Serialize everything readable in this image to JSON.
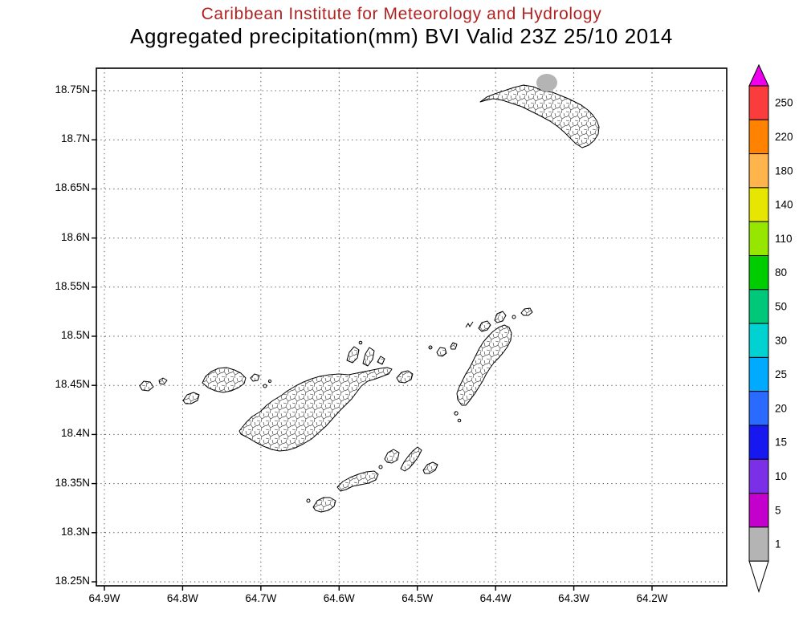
{
  "chart_data": {
    "type": "heatmap",
    "suptitle": "Caribbean Institute for Meteorology and Hydrology",
    "title": "Aggregated precipitation(mm) BVI Valid 23Z 25/10 2014",
    "x_ticks": [
      "64.9W",
      "64.8W",
      "64.7W",
      "64.6W",
      "64.5W",
      "64.4W",
      "64.3W",
      "64.2W"
    ],
    "y_ticks": [
      "18.75N",
      "18.7N",
      "18.65N",
      "18.6N",
      "18.55N",
      "18.5N",
      "18.45N",
      "18.4N",
      "18.35N",
      "18.3N",
      "18.25N"
    ],
    "grid": "dotted",
    "colorbar_units": "mm",
    "colorbar_position": "right",
    "colorbar_cells_top_to_bottom": [
      {
        "label": "250",
        "color": "#fa3c3c"
      },
      {
        "label": "220",
        "color": "#ff8200"
      },
      {
        "label": "180",
        "color": "#ffb44c"
      },
      {
        "label": "140",
        "color": "#e6e600"
      },
      {
        "label": "110",
        "color": "#96e600"
      },
      {
        "label": "80",
        "color": "#00cd00"
      },
      {
        "label": "50",
        "color": "#00c87a"
      },
      {
        "label": "30",
        "color": "#00d2d2"
      },
      {
        "label": "25",
        "color": "#00aaff"
      },
      {
        "label": "20",
        "color": "#2a6aff"
      },
      {
        "label": "15",
        "color": "#1717f0"
      },
      {
        "label": "10",
        "color": "#7b2fe6"
      },
      {
        "label": "5",
        "color": "#c400cd"
      },
      {
        "label": "1",
        "color": "#b4b4b4"
      }
    ],
    "colorbar_top_arrow": {
      "meaning": ">250",
      "color": "#ee00ee"
    },
    "colorbar_bottom_arrow": {
      "meaning": "<1",
      "color": "#ffffff"
    },
    "shaded_regions": [
      {
        "value_mm": "1-5",
        "color": "#b4b4b4",
        "where": "north coast of top-right island (Anegada), approx 64.33W 18.75N"
      }
    ]
  },
  "styles": {
    "suptitle_color": "#b22222",
    "title_color": "#000000",
    "background": "#ffffff",
    "coastline_color": "#000000",
    "grid_color": "#555555"
  }
}
